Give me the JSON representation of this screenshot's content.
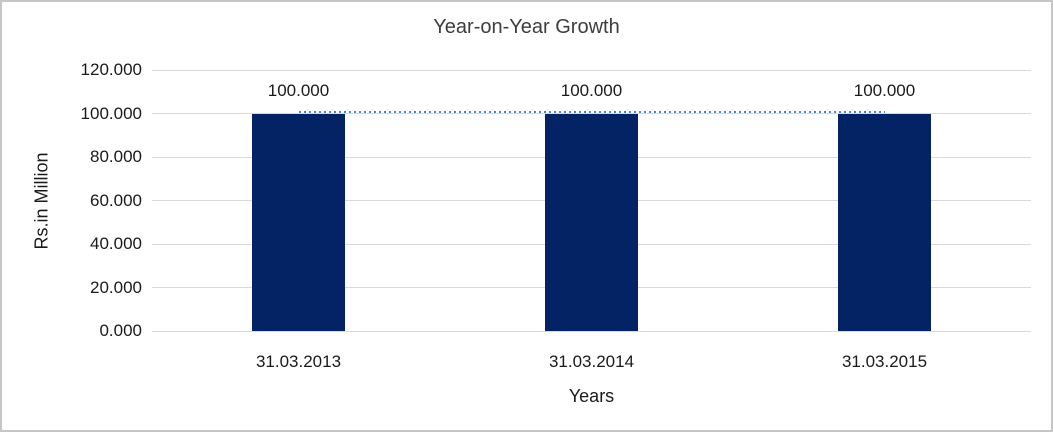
{
  "chart_data": {
    "type": "bar",
    "title": "Year-on-Year Growth",
    "categories": [
      "31.03.2013",
      "31.03.2014",
      "31.03.2015"
    ],
    "series": [
      {
        "type": "bar",
        "values": [
          100,
          100,
          100
        ],
        "color": "#042365"
      },
      {
        "type": "line",
        "style": "dotted",
        "values": [
          100,
          100,
          100
        ],
        "color": "#4E86C8"
      }
    ],
    "data_labels": [
      "100.000",
      "100.000",
      "100.000"
    ],
    "xlabel": "Years",
    "ylabel": "Rs.in Million",
    "ylim": [
      0,
      120
    ],
    "yticks": [
      "120.000",
      "100.000",
      "80.000",
      "60.000",
      "40.000",
      "20.000",
      "0.000"
    ],
    "grid": "horizontal",
    "legend": "none",
    "colors": {
      "gridline": "#D9D9D9",
      "axis_text": "#1a1a1a",
      "title_text": "#3d3d3d",
      "background": "#FFFFFF",
      "border": "#C6C6C6"
    }
  }
}
